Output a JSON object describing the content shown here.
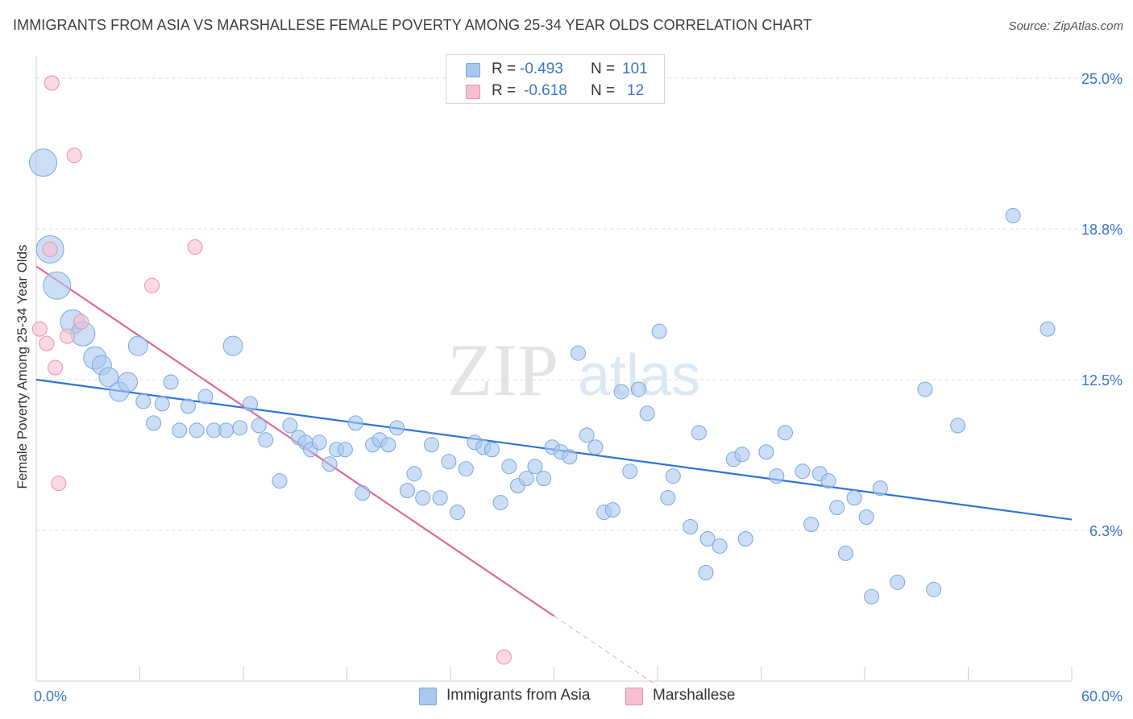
{
  "header": {
    "title": "IMMIGRANTS FROM ASIA VS MARSHALLESE FEMALE POVERTY AMONG 25-34 YEAR OLDS CORRELATION CHART",
    "source": "Source: ZipAtlas.com"
  },
  "watermark": {
    "part1": "ZIP",
    "part2": "atlas"
  },
  "legend_stats": [
    {
      "r_label": "R =",
      "r_value": "-0.493",
      "n_label": "N =",
      "n_value": "101",
      "color": "#a9c8ef",
      "border": "#7aa6de"
    },
    {
      "r_label": "R =",
      "r_value": "-0.618",
      "n_label": "N =",
      "n_value": "12",
      "color": "#f6bfd0",
      "border": "#ea8eaa"
    }
  ],
  "bottom_legend": [
    {
      "label": "Immigrants from Asia",
      "color": "#a9c8ef",
      "border": "#7aa6de"
    },
    {
      "label": "Marshallese",
      "color": "#f6bfd0",
      "border": "#ea8eaa"
    }
  ],
  "chart_data": {
    "type": "scatter",
    "title": "IMMIGRANTS FROM ASIA VS MARSHALLESE FEMALE POVERTY AMONG 25-34 YEAR OLDS CORRELATION CHART",
    "xlabel": "",
    "ylabel": "Female Poverty Among 25-34 Year Olds",
    "xlim": [
      0,
      60
    ],
    "ylim": [
      0,
      25.0
    ],
    "x_tick_labels": [
      {
        "value": 0,
        "label": "0.0%"
      },
      {
        "value": 60,
        "label": "60.0%"
      }
    ],
    "y_tick_labels": [
      {
        "value": 25.0,
        "label": "25.0%"
      },
      {
        "value": 18.75,
        "label": "18.8%"
      },
      {
        "value": 12.5,
        "label": "12.5%"
      },
      {
        "value": 6.25,
        "label": "6.3%"
      }
    ],
    "grid": "horizontal dashed",
    "series": [
      {
        "name": "Immigrants from Asia",
        "color": "#a9c8ef",
        "edge": "#7aa6de",
        "trend": {
          "x": [
            0,
            60
          ],
          "y": [
            12.5,
            6.7
          ],
          "color": "#2f73d6"
        },
        "points": [
          [
            0.4,
            21.5,
            3
          ],
          [
            0.8,
            17.9,
            3
          ],
          [
            1.2,
            16.4,
            3
          ],
          [
            2.1,
            14.9,
            2.5
          ],
          [
            2.7,
            14.4,
            2.5
          ],
          [
            3.4,
            13.4,
            2
          ],
          [
            3.8,
            13.1,
            1.6
          ],
          [
            4.2,
            12.6,
            1.6
          ],
          [
            4.8,
            12.0,
            1.6
          ],
          [
            5.3,
            12.4,
            1.6
          ],
          [
            5.9,
            13.9,
            1.6
          ],
          [
            6.2,
            11.6,
            1
          ],
          [
            6.8,
            10.7,
            1
          ],
          [
            7.3,
            11.5,
            1
          ],
          [
            7.8,
            12.4,
            1
          ],
          [
            8.3,
            10.4,
            1
          ],
          [
            8.8,
            11.4,
            1
          ],
          [
            9.3,
            10.4,
            1
          ],
          [
            9.8,
            11.8,
            1
          ],
          [
            10.3,
            10.4,
            1
          ],
          [
            11.0,
            10.4,
            1
          ],
          [
            11.4,
            13.9,
            1.6
          ],
          [
            11.8,
            10.5,
            1
          ],
          [
            12.4,
            11.5,
            1
          ],
          [
            12.9,
            10.6,
            1
          ],
          [
            13.3,
            10.0,
            1
          ],
          [
            14.1,
            8.3,
            1
          ],
          [
            14.7,
            10.6,
            1
          ],
          [
            15.2,
            10.1,
            1
          ],
          [
            15.6,
            9.9,
            1
          ],
          [
            15.9,
            9.6,
            1
          ],
          [
            16.4,
            9.9,
            1
          ],
          [
            17.0,
            9.0,
            1
          ],
          [
            17.4,
            9.6,
            1
          ],
          [
            17.9,
            9.6,
            1
          ],
          [
            18.5,
            10.7,
            1
          ],
          [
            18.9,
            7.8,
            1
          ],
          [
            19.5,
            9.8,
            1
          ],
          [
            19.9,
            10.0,
            1
          ],
          [
            20.4,
            9.8,
            1
          ],
          [
            20.9,
            10.5,
            1
          ],
          [
            21.5,
            7.9,
            1
          ],
          [
            21.9,
            8.6,
            1
          ],
          [
            22.4,
            7.6,
            1
          ],
          [
            22.9,
            9.8,
            1
          ],
          [
            23.4,
            7.6,
            1
          ],
          [
            23.9,
            9.1,
            1
          ],
          [
            24.4,
            7.0,
            1
          ],
          [
            24.9,
            8.8,
            1
          ],
          [
            25.4,
            9.9,
            1
          ],
          [
            25.9,
            9.7,
            1
          ],
          [
            26.4,
            9.6,
            1
          ],
          [
            26.9,
            7.4,
            1
          ],
          [
            27.4,
            8.9,
            1
          ],
          [
            27.9,
            8.1,
            1
          ],
          [
            28.4,
            8.4,
            1
          ],
          [
            28.9,
            8.9,
            1
          ],
          [
            29.4,
            8.4,
            1
          ],
          [
            29.9,
            9.7,
            1
          ],
          [
            30.4,
            9.5,
            1
          ],
          [
            30.9,
            9.3,
            1
          ],
          [
            31.4,
            13.6,
            1
          ],
          [
            31.9,
            10.2,
            1
          ],
          [
            32.4,
            9.7,
            1
          ],
          [
            32.9,
            7.0,
            1
          ],
          [
            33.4,
            7.1,
            1
          ],
          [
            33.9,
            12.0,
            1
          ],
          [
            34.4,
            8.7,
            1
          ],
          [
            34.9,
            12.1,
            1
          ],
          [
            35.4,
            11.1,
            1
          ],
          [
            36.1,
            14.5,
            1
          ],
          [
            36.6,
            7.6,
            1
          ],
          [
            36.9,
            8.5,
            1
          ],
          [
            37.9,
            6.4,
            1
          ],
          [
            38.4,
            10.3,
            1
          ],
          [
            38.8,
            4.5,
            1
          ],
          [
            38.9,
            5.9,
            1
          ],
          [
            39.6,
            5.6,
            1
          ],
          [
            40.4,
            9.2,
            1
          ],
          [
            40.9,
            9.4,
            1
          ],
          [
            41.1,
            5.9,
            1
          ],
          [
            42.3,
            9.5,
            1
          ],
          [
            42.9,
            8.5,
            1
          ],
          [
            43.4,
            10.3,
            1
          ],
          [
            44.4,
            8.7,
            1
          ],
          [
            44.9,
            6.5,
            1
          ],
          [
            45.4,
            8.6,
            1
          ],
          [
            45.9,
            8.3,
            1
          ],
          [
            46.4,
            7.2,
            1
          ],
          [
            46.9,
            5.3,
            1
          ],
          [
            47.4,
            7.6,
            1
          ],
          [
            48.1,
            6.8,
            1
          ],
          [
            48.4,
            3.5,
            1
          ],
          [
            48.9,
            8.0,
            1
          ],
          [
            49.9,
            4.1,
            1
          ],
          [
            51.5,
            12.1,
            1
          ],
          [
            52.0,
            3.8,
            1
          ],
          [
            53.4,
            10.6,
            1
          ],
          [
            56.6,
            19.3,
            1
          ],
          [
            58.6,
            14.6,
            1
          ],
          [
            58.9,
            14.6,
            0
          ]
        ]
      },
      {
        "name": "Marshallese",
        "color": "#f6bfd0",
        "edge": "#ea8eaa",
        "trend": {
          "x": [
            0,
            30
          ],
          "y": [
            17.2,
            2.7
          ],
          "dash_to_x": 36,
          "color": "#e06a92"
        },
        "points": [
          [
            0.2,
            14.6
          ],
          [
            0.6,
            14.0
          ],
          [
            0.9,
            24.8
          ],
          [
            1.1,
            13.0
          ],
          [
            1.3,
            8.2
          ],
          [
            1.8,
            14.3
          ],
          [
            2.2,
            21.8
          ],
          [
            2.6,
            14.9
          ],
          [
            6.7,
            16.4
          ],
          [
            9.2,
            18.0
          ],
          [
            0.8,
            17.9
          ],
          [
            27.1,
            1.0
          ]
        ]
      }
    ]
  }
}
